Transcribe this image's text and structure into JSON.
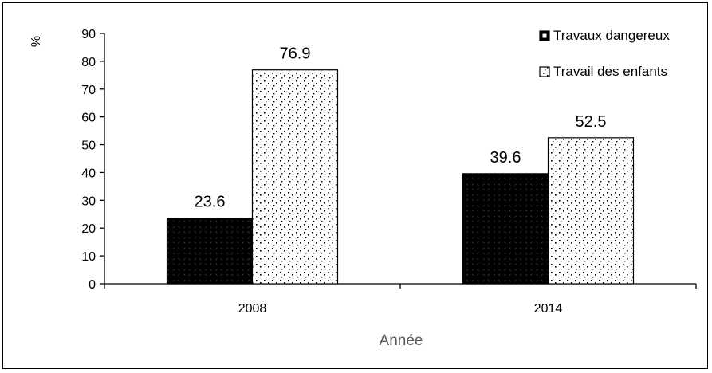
{
  "chart_data": {
    "type": "bar",
    "categories": [
      "2008",
      "2014"
    ],
    "series": [
      {
        "name": "Travaux dangereux",
        "values": [
          23.6,
          39.6
        ],
        "pattern": "diamond-dark"
      },
      {
        "name": "Travail des enfants",
        "values": [
          76.9,
          52.5
        ],
        "pattern": "dotted-light"
      }
    ],
    "data_labels": [
      [
        "23.6",
        "39.6"
      ],
      [
        "76.9",
        "52.5"
      ]
    ],
    "xlabel": "Année",
    "ylabel": "%",
    "ylim": [
      0,
      90
    ],
    "yticks": [
      "0",
      "10",
      "20",
      "30",
      "40",
      "50",
      "60",
      "70",
      "80",
      "90"
    ],
    "grid": false,
    "legend_position": "top-right",
    "colors": {
      "axis": "#000000",
      "xlabel": "#595959",
      "bar_border": "#000000"
    }
  }
}
